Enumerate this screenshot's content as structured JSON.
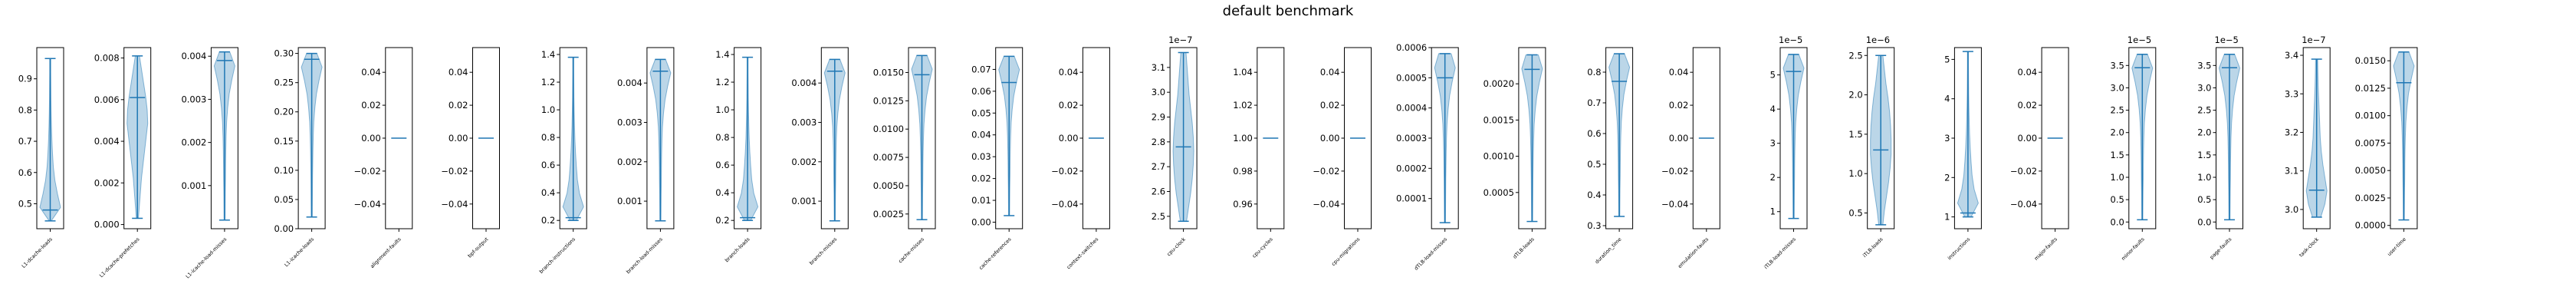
{
  "title": "default benchmark",
  "colors": {
    "violin_fill": "#1f77b4",
    "violin_edge": "#1f77b4",
    "stat_line": "#1f77b4",
    "axis": "#000000"
  },
  "chart_data": {
    "type": "violin",
    "title": "default benchmark",
    "grid": false,
    "panels": [
      {
        "label": "L1-dcache-loads",
        "multiplier": "",
        "ylim": [
          0.42,
          1.0
        ],
        "ticks": [
          "0.5",
          "0.6",
          "0.7",
          "0.8",
          "0.9"
        ],
        "tick_values": [
          0.5,
          0.6,
          0.7,
          0.8,
          0.9
        ],
        "min": 0.445,
        "max": 0.965,
        "median": 0.48,
        "shape": [
          0.1,
          1.0,
          0.7,
          0.45,
          0.3,
          0.22,
          0.16,
          0.12,
          0.09,
          0.07,
          0.06,
          0.05,
          0.05
        ]
      },
      {
        "label": "L1-dcache-prefetches",
        "multiplier": "",
        "ylim": [
          -0.0002,
          0.0085
        ],
        "ticks": [
          "0.000",
          "0.002",
          "0.004",
          "0.006",
          "0.008"
        ],
        "tick_values": [
          0,
          0.002,
          0.004,
          0.006,
          0.008
        ],
        "min": 0.0003,
        "max": 0.0081,
        "median": 0.0061,
        "shape": [
          0.1,
          0.2,
          0.3,
          0.4,
          0.55,
          0.7,
          0.85,
          1.0,
          0.95,
          0.8,
          0.6,
          0.4,
          0.2
        ]
      },
      {
        "label": "L1-icache-load-misses",
        "multiplier": "",
        "ylim": [
          0.0,
          0.0042
        ],
        "ticks": [
          "0.001",
          "0.002",
          "0.003",
          "0.004"
        ],
        "tick_values": [
          0.001,
          0.002,
          0.003,
          0.004
        ],
        "min": 0.0002,
        "max": 0.0041,
        "median": 0.0039,
        "shape": [
          0.05,
          0.06,
          0.07,
          0.09,
          0.1,
          0.12,
          0.15,
          0.2,
          0.3,
          0.45,
          0.7,
          1.0,
          0.5
        ]
      },
      {
        "label": "L1-icache-loads",
        "multiplier": "",
        "ylim": [
          0.0,
          0.31
        ],
        "ticks": [
          "0.00",
          "0.05",
          "0.10",
          "0.15",
          "0.20",
          "0.25",
          "0.30"
        ],
        "tick_values": [
          0,
          0.05,
          0.1,
          0.15,
          0.2,
          0.25,
          0.3
        ],
        "min": 0.02,
        "max": 0.3,
        "median": 0.29,
        "shape": [
          0.05,
          0.06,
          0.07,
          0.08,
          0.1,
          0.12,
          0.15,
          0.2,
          0.3,
          0.45,
          0.7,
          1.0,
          0.5
        ]
      },
      {
        "label": "alignment-faults",
        "multiplier": "",
        "ylim": [
          -0.055,
          0.055
        ],
        "ticks": [
          "−0.04",
          "−0.02",
          "0.00",
          "0.02",
          "0.04"
        ],
        "tick_values": [
          -0.04,
          -0.02,
          0,
          0.02,
          0.04
        ],
        "min": 0,
        "max": 0,
        "median": 0,
        "shape": []
      },
      {
        "label": "bpf-output",
        "multiplier": "",
        "ylim": [
          -0.055,
          0.055
        ],
        "ticks": [
          "−0.04",
          "−0.02",
          "0.00",
          "0.02",
          "0.04"
        ],
        "tick_values": [
          -0.04,
          -0.02,
          0,
          0.02,
          0.04
        ],
        "min": 0,
        "max": 0,
        "median": 0,
        "shape": []
      },
      {
        "label": "branch-instructions",
        "multiplier": "",
        "ylim": [
          0.14,
          1.45
        ],
        "ticks": [
          "0.2",
          "0.4",
          "0.6",
          "0.8",
          "1.0",
          "1.2",
          "1.4"
        ],
        "tick_values": [
          0.2,
          0.4,
          0.6,
          0.8,
          1.0,
          1.2,
          1.4
        ],
        "min": 0.2,
        "max": 1.38,
        "median": 0.22,
        "shape": [
          0.3,
          1.0,
          0.6,
          0.4,
          0.3,
          0.22,
          0.16,
          0.12,
          0.09,
          0.07,
          0.06,
          0.05,
          0.05
        ]
      },
      {
        "label": "branch-load-misses",
        "multiplier": "",
        "ylim": [
          0.0003,
          0.0049
        ],
        "ticks": [
          "0.001",
          "0.002",
          "0.003",
          "0.004"
        ],
        "tick_values": [
          0.001,
          0.002,
          0.003,
          0.004
        ],
        "min": 0.0005,
        "max": 0.0046,
        "median": 0.0043,
        "shape": [
          0.05,
          0.06,
          0.07,
          0.09,
          0.1,
          0.12,
          0.15,
          0.2,
          0.3,
          0.45,
          0.7,
          1.0,
          0.5
        ]
      },
      {
        "label": "branch-loads",
        "multiplier": "",
        "ylim": [
          0.14,
          1.45
        ],
        "ticks": [
          "0.2",
          "0.4",
          "0.6",
          "0.8",
          "1.0",
          "1.2",
          "1.4"
        ],
        "tick_values": [
          0.2,
          0.4,
          0.6,
          0.8,
          1.0,
          1.2,
          1.4
        ],
        "min": 0.2,
        "max": 1.38,
        "median": 0.22,
        "shape": [
          0.3,
          1.0,
          0.6,
          0.4,
          0.3,
          0.22,
          0.16,
          0.12,
          0.09,
          0.07,
          0.06,
          0.05,
          0.05
        ]
      },
      {
        "label": "branch-misses",
        "multiplier": "",
        "ylim": [
          0.0003,
          0.0049
        ],
        "ticks": [
          "0.001",
          "0.002",
          "0.003",
          "0.004"
        ],
        "tick_values": [
          0.001,
          0.002,
          0.003,
          0.004
        ],
        "min": 0.0005,
        "max": 0.0046,
        "median": 0.0043,
        "shape": [
          0.05,
          0.06,
          0.07,
          0.09,
          0.1,
          0.12,
          0.15,
          0.2,
          0.3,
          0.45,
          0.7,
          1.0,
          0.5
        ]
      },
      {
        "label": "cache-misses",
        "multiplier": "",
        "ylim": [
          0.0012,
          0.0172
        ],
        "ticks": [
          "0.0025",
          "0.0050",
          "0.0075",
          "0.0100",
          "0.0125",
          "0.0150"
        ],
        "tick_values": [
          0.0025,
          0.005,
          0.0075,
          0.01,
          0.0125,
          0.015
        ],
        "min": 0.002,
        "max": 0.0165,
        "median": 0.0148,
        "shape": [
          0.05,
          0.06,
          0.07,
          0.09,
          0.1,
          0.12,
          0.15,
          0.2,
          0.3,
          0.45,
          0.7,
          1.0,
          0.5
        ]
      },
      {
        "label": "cache-references",
        "multiplier": "",
        "ylim": [
          -0.003,
          0.08
        ],
        "ticks": [
          "0.00",
          "0.01",
          "0.02",
          "0.03",
          "0.04",
          "0.05",
          "0.06",
          "0.07"
        ],
        "tick_values": [
          0,
          0.01,
          0.02,
          0.03,
          0.04,
          0.05,
          0.06,
          0.07
        ],
        "min": 0.003,
        "max": 0.076,
        "median": 0.064,
        "shape": [
          0.05,
          0.06,
          0.07,
          0.09,
          0.1,
          0.12,
          0.15,
          0.2,
          0.3,
          0.45,
          0.7,
          1.0,
          0.5
        ]
      },
      {
        "label": "context-switches",
        "multiplier": "",
        "ylim": [
          -0.055,
          0.055
        ],
        "ticks": [
          "−0.04",
          "−0.02",
          "0.00",
          "0.02",
          "0.04"
        ],
        "tick_values": [
          -0.04,
          -0.02,
          0,
          0.02,
          0.04
        ],
        "min": 0,
        "max": 0,
        "median": 0,
        "shape": []
      },
      {
        "label": "cpu-clock",
        "multiplier": "1e−7",
        "ylim": [
          2.45,
          3.18
        ],
        "ticks": [
          "2.5",
          "2.6",
          "2.7",
          "2.8",
          "2.9",
          "3.0",
          "3.1"
        ],
        "tick_values": [
          2.5,
          2.6,
          2.7,
          2.8,
          2.9,
          3.0,
          3.1
        ],
        "min": 2.48,
        "max": 3.16,
        "median": 2.78,
        "shape": [
          0.3,
          0.5,
          0.7,
          0.85,
          0.95,
          1.0,
          0.95,
          0.85,
          0.7,
          0.55,
          0.45,
          0.35,
          0.25
        ]
      },
      {
        "label": "cpu-cycles",
        "multiplier": "",
        "ylim": [
          0.945,
          1.055
        ],
        "ticks": [
          "0.96",
          "0.98",
          "1.00",
          "1.02",
          "1.04"
        ],
        "tick_values": [
          0.96,
          0.98,
          1.0,
          1.02,
          1.04
        ],
        "min": 1,
        "max": 1,
        "median": 1,
        "shape": []
      },
      {
        "label": "cpu-migrations",
        "multiplier": "",
        "ylim": [
          -0.055,
          0.055
        ],
        "ticks": [
          "−0.04",
          "−0.02",
          "0.00",
          "0.02",
          "0.04"
        ],
        "tick_values": [
          -0.04,
          -0.02,
          0,
          0.02,
          0.04
        ],
        "min": 0,
        "max": 0,
        "median": 0,
        "shape": []
      },
      {
        "label": "dTLB-load-misses",
        "multiplier": "",
        "ylim": [
          0.0,
          0.0006
        ],
        "ticks": [
          "0.0001",
          "0.0002",
          "0.0003",
          "0.0004",
          "0.0005",
          "0.0006"
        ],
        "tick_values": [
          0.0001,
          0.0002,
          0.0003,
          0.0004,
          0.0005,
          0.0006
        ],
        "min": 2e-05,
        "max": 0.00058,
        "median": 0.0005,
        "shape": [
          0.05,
          0.06,
          0.07,
          0.08,
          0.1,
          0.12,
          0.15,
          0.2,
          0.3,
          0.45,
          0.7,
          1.0,
          0.6
        ]
      },
      {
        "label": "dTLB-loads",
        "multiplier": "",
        "ylim": [
          0.0,
          0.0025
        ],
        "ticks": [
          "0.0005",
          "0.0010",
          "0.0015",
          "0.0020"
        ],
        "tick_values": [
          0.0005,
          0.001,
          0.0015,
          0.002
        ],
        "min": 0.0001,
        "max": 0.0024,
        "median": 0.0022,
        "shape": [
          0.05,
          0.06,
          0.07,
          0.08,
          0.1,
          0.12,
          0.15,
          0.2,
          0.3,
          0.45,
          0.7,
          1.0,
          0.6
        ]
      },
      {
        "label": "duration_time",
        "multiplier": "",
        "ylim": [
          0.29,
          0.88
        ],
        "ticks": [
          "0.3",
          "0.4",
          "0.5",
          "0.6",
          "0.7",
          "0.8"
        ],
        "tick_values": [
          0.3,
          0.4,
          0.5,
          0.6,
          0.7,
          0.8
        ],
        "min": 0.33,
        "max": 0.86,
        "median": 0.77,
        "shape": [
          0.05,
          0.06,
          0.07,
          0.09,
          0.1,
          0.12,
          0.15,
          0.2,
          0.3,
          0.45,
          0.7,
          1.0,
          0.5
        ]
      },
      {
        "label": "emulation-faults",
        "multiplier": "",
        "ylim": [
          -0.055,
          0.055
        ],
        "ticks": [
          "−0.04",
          "−0.02",
          "0.00",
          "0.02",
          "0.04"
        ],
        "tick_values": [
          -0.04,
          -0.02,
          0,
          0.02,
          0.04
        ],
        "min": 0,
        "max": 0,
        "median": 0,
        "shape": []
      },
      {
        "label": "iTLB-load-misses",
        "multiplier": "1e−5",
        "ylim": [
          0.5,
          5.8
        ],
        "ticks": [
          "1",
          "2",
          "3",
          "4",
          "5"
        ],
        "tick_values": [
          1,
          2,
          3,
          4,
          5
        ],
        "min": 0.8,
        "max": 5.6,
        "median": 5.1,
        "shape": [
          0.05,
          0.06,
          0.07,
          0.09,
          0.1,
          0.12,
          0.15,
          0.2,
          0.3,
          0.45,
          0.7,
          1.0,
          0.5
        ]
      },
      {
        "label": "iTLB-loads",
        "multiplier": "1e−6",
        "ylim": [
          0.3,
          2.6
        ],
        "ticks": [
          "0.5",
          "1.0",
          "1.5",
          "2.0",
          "2.5"
        ],
        "tick_values": [
          0.5,
          1.0,
          1.5,
          2.0,
          2.5
        ],
        "min": 0.35,
        "max": 2.5,
        "median": 1.3,
        "shape": [
          0.2,
          0.35,
          0.55,
          0.75,
          0.9,
          1.0,
          1.0,
          0.95,
          0.85,
          0.7,
          0.5,
          0.35,
          0.2
        ]
      },
      {
        "label": "instructions",
        "multiplier": "",
        "ylim": [
          0.7,
          5.3
        ],
        "ticks": [
          "1",
          "2",
          "3",
          "4",
          "5"
        ],
        "tick_values": [
          1,
          2,
          3,
          4,
          5
        ],
        "min": 1.0,
        "max": 5.2,
        "median": 1.1,
        "shape": [
          0.3,
          1.0,
          0.6,
          0.4,
          0.3,
          0.22,
          0.16,
          0.12,
          0.09,
          0.07,
          0.06,
          0.05,
          0.05
        ]
      },
      {
        "label": "major-faults",
        "multiplier": "",
        "ylim": [
          -0.055,
          0.055
        ],
        "ticks": [
          "−0.04",
          "−0.02",
          "0.00",
          "0.02",
          "0.04"
        ],
        "tick_values": [
          -0.04,
          -0.02,
          0,
          0.02,
          0.04
        ],
        "min": 0,
        "max": 0,
        "median": 0,
        "shape": []
      },
      {
        "label": "minor-faults",
        "multiplier": "1e−5",
        "ylim": [
          -0.15,
          3.9
        ],
        "ticks": [
          "0.0",
          "0.5",
          "1.0",
          "1.5",
          "2.0",
          "2.5",
          "3.0",
          "3.5"
        ],
        "tick_values": [
          0,
          0.5,
          1,
          1.5,
          2,
          2.5,
          3,
          3.5
        ],
        "min": 0.05,
        "max": 3.75,
        "median": 3.45,
        "shape": [
          0.05,
          0.06,
          0.07,
          0.09,
          0.1,
          0.12,
          0.15,
          0.2,
          0.3,
          0.45,
          0.7,
          1.0,
          0.5
        ]
      },
      {
        "label": "page-faults",
        "multiplier": "1e−5",
        "ylim": [
          -0.15,
          3.9
        ],
        "ticks": [
          "0.0",
          "0.5",
          "1.0",
          "1.5",
          "2.0",
          "2.5",
          "3.0",
          "3.5"
        ],
        "tick_values": [
          0,
          0.5,
          1,
          1.5,
          2,
          2.5,
          3,
          3.5
        ],
        "min": 0.05,
        "max": 3.75,
        "median": 3.45,
        "shape": [
          0.05,
          0.06,
          0.07,
          0.09,
          0.1,
          0.12,
          0.15,
          0.2,
          0.3,
          0.45,
          0.7,
          1.0,
          0.5
        ]
      },
      {
        "label": "task-clock",
        "multiplier": "1e−7",
        "ylim": [
          2.95,
          3.42
        ],
        "ticks": [
          "3.0",
          "3.1",
          "3.2",
          "3.3",
          "3.4"
        ],
        "tick_values": [
          3.0,
          3.1,
          3.2,
          3.3,
          3.4
        ],
        "min": 2.98,
        "max": 3.39,
        "median": 3.05,
        "shape": [
          0.4,
          0.8,
          1.0,
          0.8,
          0.6,
          0.45,
          0.35,
          0.3,
          0.25,
          0.2,
          0.15,
          0.12,
          0.1
        ]
      },
      {
        "label": "user-time",
        "multiplier": "",
        "ylim": [
          -0.0003,
          0.0162
        ],
        "ticks": [
          "0.0000",
          "0.0025",
          "0.0050",
          "0.0075",
          "0.0100",
          "0.0125",
          "0.0150"
        ],
        "tick_values": [
          0,
          0.0025,
          0.005,
          0.0075,
          0.01,
          0.0125,
          0.015
        ],
        "min": 0.0005,
        "max": 0.0158,
        "median": 0.013,
        "shape": [
          0.05,
          0.06,
          0.07,
          0.09,
          0.1,
          0.12,
          0.15,
          0.2,
          0.3,
          0.45,
          0.7,
          1.0,
          0.5
        ]
      }
    ]
  }
}
